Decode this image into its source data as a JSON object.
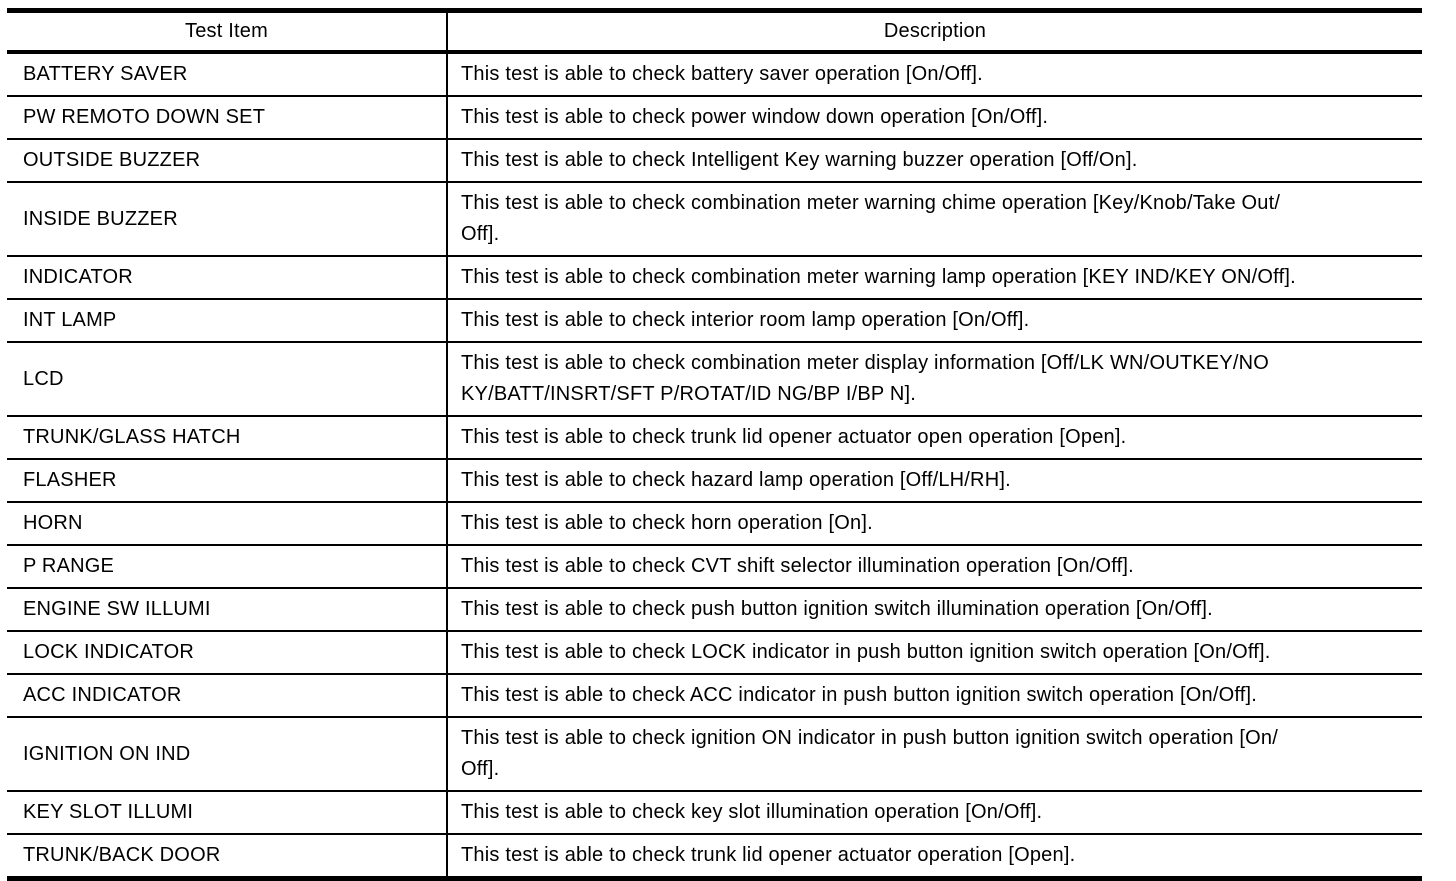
{
  "colors": {
    "border": "#000000",
    "text": "#000000",
    "background": "#ffffff"
  },
  "table": {
    "columns": [
      {
        "key": "item",
        "label": "Test Item"
      },
      {
        "key": "description",
        "label": "Description"
      }
    ],
    "rows": [
      {
        "item": "BATTERY SAVER",
        "description": "This test is able to check battery saver operation [On/Off]."
      },
      {
        "item": "PW REMOTO DOWN SET",
        "description": "This test is able to check power window down operation [On/Off]."
      },
      {
        "item": "OUTSIDE BUZZER",
        "description": "This test is able to check Intelligent Key warning buzzer operation [Off/On]."
      },
      {
        "item": "INSIDE BUZZER",
        "description": "This test is able to check combination meter warning chime operation [Key/Knob/Take Out/\nOff]."
      },
      {
        "item": "INDICATOR",
        "description": "This test is able to check combination meter warning lamp operation [KEY IND/KEY ON/Off]."
      },
      {
        "item": "INT LAMP",
        "description": "This test is able to check interior room lamp operation [On/Off]."
      },
      {
        "item": "LCD",
        "description": "This test is able to check combination meter display information [Off/LK WN/OUTKEY/NO\nKY/BATT/INSRT/SFT P/ROTAT/ID NG/BP I/BP N]."
      },
      {
        "item": "TRUNK/GLASS HATCH",
        "description": "This test is able to check trunk lid opener actuator open operation [Open]."
      },
      {
        "item": "FLASHER",
        "description": "This test is able to check hazard lamp operation [Off/LH/RH]."
      },
      {
        "item": "HORN",
        "description": "This test is able to check horn operation [On]."
      },
      {
        "item": "P RANGE",
        "description": "This test is able to check CVT shift selector illumination operation [On/Off]."
      },
      {
        "item": "ENGINE SW ILLUMI",
        "description": "This test is able to check push button ignition switch illumination operation [On/Off]."
      },
      {
        "item": "LOCK INDICATOR",
        "description": "This test is able to check LOCK indicator in push button ignition switch operation [On/Off]."
      },
      {
        "item": "ACC INDICATOR",
        "description": "This test is able to check ACC indicator in push button ignition switch operation [On/Off]."
      },
      {
        "item": "IGNITION ON IND",
        "description": "This test is able to check ignition ON indicator in push button ignition switch operation [On/\nOff]."
      },
      {
        "item": "KEY SLOT ILLUMI",
        "description": "This test is able to check key slot illumination operation [On/Off]."
      },
      {
        "item": "TRUNK/BACK DOOR",
        "description": "This test is able to check trunk lid opener actuator operation [Open]."
      }
    ]
  }
}
